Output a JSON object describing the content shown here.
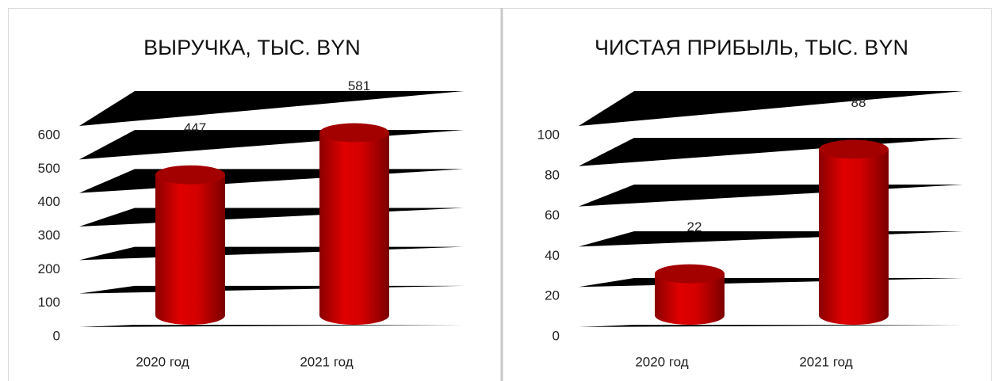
{
  "chart_data": [
    {
      "type": "bar3d",
      "title": "ВЫРУЧКА, ТЫС. BYN",
      "categories": [
        "2020 год",
        "2021 год"
      ],
      "values": [
        447,
        581
      ],
      "color": "#c00000",
      "ylim": [
        0,
        600
      ],
      "yticks": [
        0,
        100,
        200,
        300,
        400,
        500,
        600
      ],
      "grid": true
    },
    {
      "type": "bar3d",
      "title": "ЧИСТАЯ ПРИБЫЛЬ, ТЫС. BYN",
      "categories": [
        "2020 год",
        "2021 год"
      ],
      "values": [
        22,
        88
      ],
      "color": "#c00000",
      "ylim": [
        0,
        100
      ],
      "yticks": [
        0,
        20,
        40,
        60,
        80,
        100
      ],
      "grid": true
    }
  ]
}
